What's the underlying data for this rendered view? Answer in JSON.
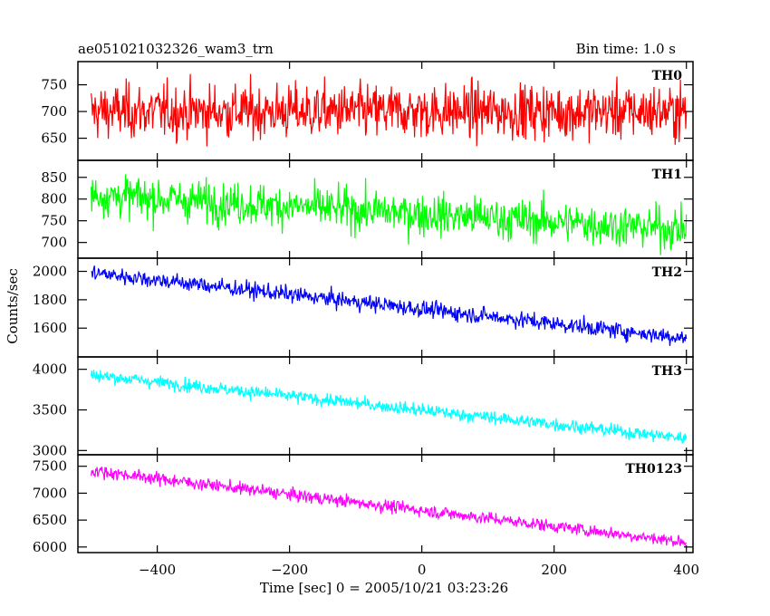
{
  "header": {
    "title": "ae051021032326_wam3_trn",
    "bin_time": "Bin time: 1.0 s"
  },
  "chart_data": {
    "type": "line",
    "xlabel": "Time [sec] 0 = 2005/10/21 03:23:26",
    "ylabel": "Counts/sec",
    "xlim": [
      -520,
      410
    ],
    "x_ticks": [
      -400,
      -200,
      0,
      200,
      400
    ],
    "x_step": 1,
    "x_range": [
      -500,
      400
    ],
    "panels": [
      {
        "name": "TH0",
        "color": "#ff0000",
        "ylim": [
          612,
          790
        ],
        "yticks": [
          650,
          700,
          750
        ],
        "start": 700,
        "end": 700,
        "noise": 48
      },
      {
        "name": "TH1",
        "color": "#00ff00",
        "ylim": [
          668,
          885
        ],
        "yticks": [
          700,
          750,
          800,
          850
        ],
        "start": 810,
        "end": 730,
        "noise": 45
      },
      {
        "name": "TH2",
        "color": "#0000ff",
        "ylim": [
          1410,
          2080
        ],
        "yticks": [
          1600,
          1800,
          2000
        ],
        "start": 1990,
        "end": 1530,
        "noise": 55
      },
      {
        "name": "TH3",
        "color": "#00ffff",
        "ylim": [
          2970,
          4130
        ],
        "yticks": [
          3000,
          3500,
          4000
        ],
        "start": 3930,
        "end": 3150,
        "noise": 75
      },
      {
        "name": "TH0123",
        "color": "#ff00ff",
        "ylim": [
          5930,
          7680
        ],
        "yticks": [
          6000,
          6500,
          7000,
          7500
        ],
        "start": 7420,
        "end": 6090,
        "noise": 110
      }
    ]
  }
}
